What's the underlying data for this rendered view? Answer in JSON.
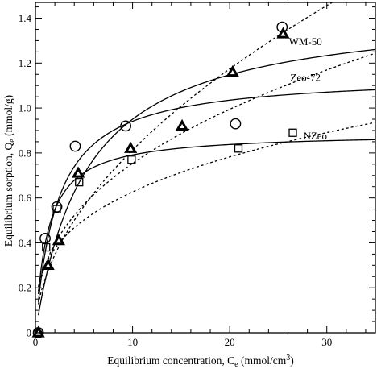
{
  "chart_data": {
    "type": "scatter",
    "xlabel": "Equilibrium concentration, C",
    "xlabel_sub": "e",
    "xlabel_unit": " (mmol/cm",
    "xlabel_unit_sup": "3",
    "xlabel_close": ")",
    "ylabel": "Equilibrium sorption, Q",
    "ylabel_sub": "e",
    "ylabel_unit": " (mmol/g)",
    "xlim": [
      0,
      35
    ],
    "ylim": [
      0,
      1.47
    ],
    "xticks": [
      0,
      10,
      20,
      30
    ],
    "xtick_labels": [
      "0",
      "10",
      "20",
      "30"
    ],
    "yticks": [
      0,
      0.2,
      0.4,
      0.6,
      0.8,
      1.0,
      1.2,
      1.4
    ],
    "ytick_labels": [
      "0",
      "0.2",
      "0.4",
      "0.6",
      "0.8",
      "1.0",
      "1.2",
      "1.4"
    ],
    "series": [
      {
        "name": "WM-50",
        "marker": "triangle",
        "points": [
          [
            0.3,
            0.0
          ],
          [
            1.3,
            0.3
          ],
          [
            2.4,
            0.41
          ],
          [
            4.4,
            0.71
          ],
          [
            9.8,
            0.82
          ],
          [
            15.1,
            0.92
          ],
          [
            20.3,
            1.16
          ],
          [
            25.5,
            1.33
          ]
        ],
        "solid_fit": {
          "qmax": 1.45,
          "K": 0.19
        },
        "dashed_fit": {
          "kf": 0.24,
          "n": 0.53
        }
      },
      {
        "name": "Zeo-72",
        "marker": "circle",
        "points": [
          [
            0.3,
            0.0
          ],
          [
            1.0,
            0.42
          ],
          [
            2.2,
            0.56
          ],
          [
            4.1,
            0.83
          ],
          [
            9.3,
            0.92
          ],
          [
            20.6,
            0.93
          ],
          [
            25.4,
            1.36
          ]
        ],
        "solid_fit": {
          "qmax": 1.15,
          "K": 0.45
        },
        "dashed_fit": {
          "kf": 0.3,
          "n": 0.4
        }
      },
      {
        "name": "NZeo",
        "marker": "square",
        "points": [
          [
            0.3,
            0.0
          ],
          [
            1.1,
            0.38
          ],
          [
            2.2,
            0.55
          ],
          [
            4.5,
            0.67
          ],
          [
            9.9,
            0.77
          ],
          [
            20.9,
            0.82
          ],
          [
            26.5,
            0.89
          ]
        ],
        "solid_fit": {
          "qmax": 0.89,
          "K": 0.8
        },
        "dashed_fit": {
          "kf": 0.3,
          "n": 0.32
        }
      }
    ],
    "annotations": [
      {
        "text": "WM-50",
        "x": 27.8,
        "y": 1.28
      },
      {
        "text": "Zeo-72",
        "x": 27.8,
        "y": 1.12
      },
      {
        "text": "NZeo",
        "x": 28.8,
        "y": 0.86
      }
    ]
  }
}
